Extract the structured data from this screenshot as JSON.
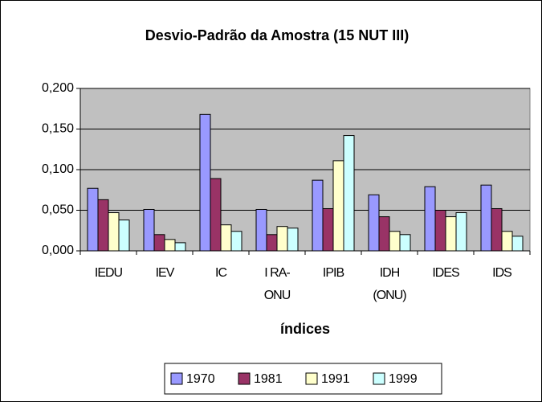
{
  "chart_data": {
    "type": "bar",
    "title": "Desvio-Padrão da Amostra (15 NUT III)",
    "x_label": "índices",
    "categories": [
      [
        "IEDU"
      ],
      [
        "IEV"
      ],
      [
        "IC"
      ],
      [
        "I RA-",
        "ONU"
      ],
      [
        "IPIB"
      ],
      [
        "IDH",
        "(ONU)"
      ],
      [
        "IDES"
      ],
      [
        "IDS"
      ]
    ],
    "series": [
      {
        "name": "1970",
        "color": "#9999ff",
        "values": [
          0.077,
          0.051,
          0.168,
          0.051,
          0.087,
          0.069,
          0.079,
          0.081
        ]
      },
      {
        "name": "1981",
        "color": "#993366",
        "values": [
          0.063,
          0.02,
          0.089,
          0.02,
          0.052,
          0.042,
          0.05,
          0.052
        ]
      },
      {
        "name": "1991",
        "color": "#ffffcc",
        "values": [
          0.047,
          0.014,
          0.032,
          0.03,
          0.111,
          0.024,
          0.042,
          0.024
        ]
      },
      {
        "name": "1999",
        "color": "#ccffff",
        "values": [
          0.038,
          0.01,
          0.024,
          0.028,
          0.142,
          0.02,
          0.047,
          0.018
        ]
      }
    ],
    "ylim": [
      0,
      0.2
    ],
    "yticks": [
      {
        "value": 0,
        "label": "0,000"
      },
      {
        "value": 0.05,
        "label": "0,050"
      },
      {
        "value": 0.1,
        "label": "0,100"
      },
      {
        "value": 0.15,
        "label": "0,150"
      },
      {
        "value": 0.2,
        "label": "0,200"
      }
    ],
    "grid": true,
    "legend": "bottom",
    "plot_background": "#c0c0c0"
  }
}
